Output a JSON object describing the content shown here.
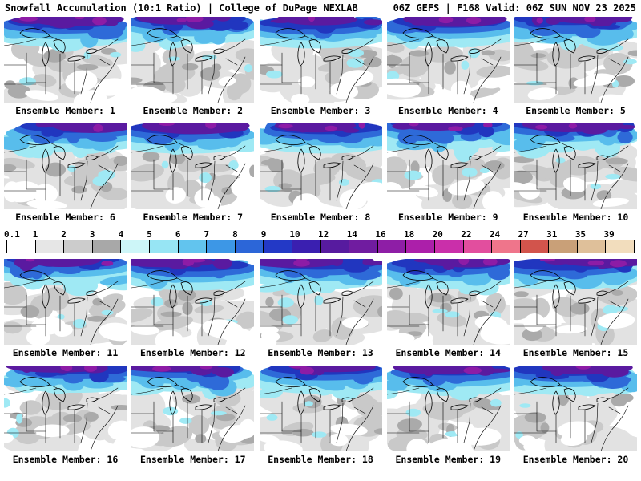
{
  "header": {
    "left": "Snowfall Accumulation (10:1 Ratio) | College of DuPage NEXLAB",
    "right": "06Z GEFS | F168 Valid: 06Z SUN NOV 23 2025"
  },
  "panels": [
    {
      "member": 1,
      "label": "Ensemble Member: 1"
    },
    {
      "member": 2,
      "label": "Ensemble Member: 2"
    },
    {
      "member": 3,
      "label": "Ensemble Member: 3"
    },
    {
      "member": 4,
      "label": "Ensemble Member: 4"
    },
    {
      "member": 5,
      "label": "Ensemble Member: 5"
    },
    {
      "member": 6,
      "label": "Ensemble Member: 6"
    },
    {
      "member": 7,
      "label": "Ensemble Member: 7"
    },
    {
      "member": 8,
      "label": "Ensemble Member: 8"
    },
    {
      "member": 9,
      "label": "Ensemble Member: 9"
    },
    {
      "member": 10,
      "label": "Ensemble Member: 10"
    },
    {
      "member": 11,
      "label": "Ensemble Member: 11"
    },
    {
      "member": 12,
      "label": "Ensemble Member: 12"
    },
    {
      "member": 13,
      "label": "Ensemble Member: 13"
    },
    {
      "member": 14,
      "label": "Ensemble Member: 14"
    },
    {
      "member": 15,
      "label": "Ensemble Member: 15"
    },
    {
      "member": 16,
      "label": "Ensemble Member: 16"
    },
    {
      "member": 17,
      "label": "Ensemble Member: 17"
    },
    {
      "member": 18,
      "label": "Ensemble Member: 18"
    },
    {
      "member": 19,
      "label": "Ensemble Member: 19"
    },
    {
      "member": 20,
      "label": "Ensemble Member: 20"
    }
  ],
  "colorbar": {
    "values": [
      "0.1",
      "1",
      "2",
      "3",
      "4",
      "5",
      "6",
      "7",
      "8",
      "9",
      "10",
      "12",
      "14",
      "16",
      "18",
      "20",
      "22",
      "24",
      "27",
      "31",
      "35",
      "39"
    ],
    "colors": [
      "#ffffff",
      "#e6e6e6",
      "#cccccc",
      "#a8a8a8",
      "#cdf6f8",
      "#97e5f4",
      "#62c4ee",
      "#3d97e6",
      "#2c66d8",
      "#2339c6",
      "#3a1fb0",
      "#571b9f",
      "#701ca0",
      "#8e1ea6",
      "#ac1faa",
      "#ca2faa",
      "#e24e9e",
      "#ef758b",
      "#d2544c",
      "#c9a078",
      "#dfc09a",
      "#f2ddbd"
    ]
  },
  "map_palette": {
    "light_gray": "#e2e2e2",
    "medium_gray": "#c9c9c9",
    "dark_gray": "#aaaaaa",
    "cyan": "#9fe9f4",
    "light_blue": "#58bdec",
    "blue": "#2e6ad8",
    "dark_blue": "#2136bf",
    "purple": "#5a1aa0",
    "magenta": "#8d1ca6",
    "boundary": "#000000"
  }
}
